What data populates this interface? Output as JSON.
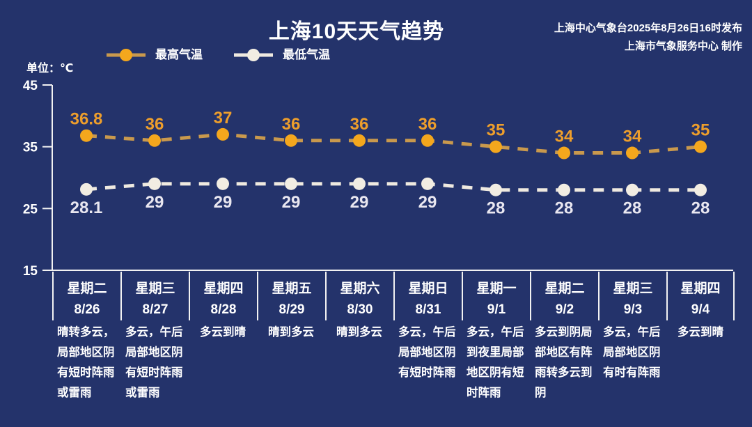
{
  "header": {
    "title": "上海10天天气趋势",
    "publish_line1": "上海中心气象台2025年8月26日16时发布",
    "publish_line2": "上海市气象服务中心 制作"
  },
  "unit_label": "单位：℃",
  "legend": [
    {
      "label": "最高气温",
      "marker_color": "#F4A71D",
      "line_color": "#C9994D"
    },
    {
      "label": "最低气温",
      "marker_color": "#F2EDE2",
      "line_color": "#EFEAE0"
    }
  ],
  "colors": {
    "background": "#24336B",
    "axis": "#F2F2F2",
    "text": "#FFFFFF"
  },
  "chart_data": {
    "type": "line",
    "title": "上海10天天气趋势",
    "ylabel": "℃",
    "ylim": [
      15,
      45
    ],
    "yticks": [
      45,
      35,
      25,
      15
    ],
    "grid": false,
    "legend_position": "top-left",
    "line_style": "dashed",
    "categories": [
      {
        "weekday": "星期二",
        "date": "8/26"
      },
      {
        "weekday": "星期三",
        "date": "8/27"
      },
      {
        "weekday": "星期四",
        "date": "8/28"
      },
      {
        "weekday": "星期五",
        "date": "8/29"
      },
      {
        "weekday": "星期六",
        "date": "8/30"
      },
      {
        "weekday": "星期日",
        "date": "8/31"
      },
      {
        "weekday": "星期一",
        "date": "9/1"
      },
      {
        "weekday": "星期二",
        "date": "9/2"
      },
      {
        "weekday": "星期三",
        "date": "9/3"
      },
      {
        "weekday": "星期四",
        "date": "9/4"
      }
    ],
    "series": [
      {
        "name": "最高气温",
        "values": [
          36.8,
          36,
          37,
          36,
          36,
          36,
          35,
          34,
          34,
          35
        ],
        "marker_color": "#F4A71D",
        "line_color": "#C9994D",
        "label_color": "#ED9E2C"
      },
      {
        "name": "最低气温",
        "values": [
          28.1,
          29,
          29,
          29,
          29,
          29,
          28,
          28,
          28,
          28
        ],
        "marker_color": "#F2EDE2",
        "line_color": "#EFEAE0",
        "label_color": "#E9E7F0"
      }
    ],
    "descriptions": [
      "晴转多云，局部地区阴有短时阵雨或雷雨",
      "多云，午后局部地区阴有短时阵雨或雷雨",
      "多云到晴",
      "晴到多云",
      "晴到多云",
      "多云，午后局部地区阴有短时阵雨",
      "多云，午后到夜里局部地区阴有短时阵雨",
      "多云到阴局部地区有阵雨转多云到阴",
      "多云，午后局部地区阴有时有阵雨",
      "多云到晴"
    ]
  }
}
